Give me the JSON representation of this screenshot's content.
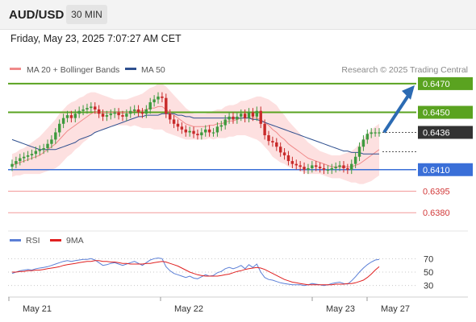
{
  "header": {
    "symbol": "AUD/USD",
    "timeframe": "30 MIN",
    "timestamp": "Friday, May 23, 2025 7:07:27 AM CET"
  },
  "legend": {
    "items": [
      {
        "label": "MA 20 + Bollinger Bands",
        "color": "#f08a8a"
      },
      {
        "label": "MA 50",
        "color": "#2e4f8f"
      }
    ],
    "credit": "Research © 2025 Trading Central"
  },
  "rsi_legend": {
    "items": [
      {
        "label": "RSI",
        "color": "#5b7fd6"
      },
      {
        "label": "9MA",
        "color": "#e02020"
      }
    ]
  },
  "colors": {
    "resistance": "#5aa320",
    "support": "#3a6fd8",
    "target_support": "#f29a9a",
    "last_price": "#333333",
    "arrow": "#2c6bb3",
    "bullish": "#3e9a3e",
    "bearish": "#c82a2a",
    "bands_fill": "#fde0e0"
  },
  "chart_data": [
    {
      "type": "candlestick",
      "title": "AUD/USD",
      "yrange": [
        0.637,
        0.6475
      ],
      "key_levels": [
        {
          "value": 0.647,
          "label": "0.6470",
          "kind": "resistance"
        },
        {
          "value": 0.645,
          "label": "0.6450",
          "kind": "resistance"
        },
        {
          "value": 0.6436,
          "label": "0.6436",
          "kind": "last_price"
        },
        {
          "value": 0.641,
          "label": "0.6410",
          "kind": "support"
        },
        {
          "value": 0.6395,
          "label": "0.6395",
          "kind": "target"
        },
        {
          "value": 0.638,
          "label": "0.6380",
          "kind": "target"
        }
      ],
      "x_ticks": [
        "May 21",
        "May 22",
        "May 23",
        "May 27"
      ],
      "forecast_arrow": {
        "from": 0.6436,
        "to": 0.647
      },
      "close": [
        0.6414,
        0.6416,
        0.6418,
        0.6419,
        0.642,
        0.6421,
        0.6423,
        0.6424,
        0.6425,
        0.6428,
        0.6431,
        0.6436,
        0.6442,
        0.6446,
        0.6448,
        0.6446,
        0.6449,
        0.6451,
        0.6452,
        0.6453,
        0.6454,
        0.6452,
        0.6449,
        0.6447,
        0.6448,
        0.6449,
        0.645,
        0.6448,
        0.6447,
        0.6449,
        0.6451,
        0.6452,
        0.645,
        0.6449,
        0.6452,
        0.6457,
        0.6459,
        0.6461,
        0.646,
        0.6449,
        0.6445,
        0.6442,
        0.644,
        0.6438,
        0.6436,
        0.6437,
        0.6435,
        0.6434,
        0.6436,
        0.6438,
        0.6436,
        0.6436,
        0.644,
        0.6441,
        0.6445,
        0.6447,
        0.6445,
        0.6447,
        0.6449,
        0.6446,
        0.645,
        0.6447,
        0.6451,
        0.6442,
        0.6434,
        0.643,
        0.6429,
        0.6426,
        0.6422,
        0.642,
        0.6416,
        0.6414,
        0.6413,
        0.6412,
        0.641,
        0.6411,
        0.6413,
        0.6412,
        0.6411,
        0.641,
        0.641,
        0.6411,
        0.6412,
        0.6413,
        0.6411,
        0.641,
        0.6414,
        0.6419,
        0.6426,
        0.6431,
        0.6435,
        0.6436,
        0.6436,
        0.6436
      ],
      "ma20": [
        0.6413,
        0.6414,
        0.6415,
        0.6416,
        0.6417,
        0.6418,
        0.6419,
        0.642,
        0.6422,
        0.6424,
        0.6426,
        0.6428,
        0.6431,
        0.6434,
        0.6437,
        0.6439,
        0.6441,
        0.6443,
        0.6445,
        0.6447,
        0.6449,
        0.645,
        0.645,
        0.645,
        0.645,
        0.645,
        0.645,
        0.645,
        0.645,
        0.645,
        0.645,
        0.6451,
        0.6451,
        0.6451,
        0.6452,
        0.6453,
        0.6453,
        0.6454,
        0.6454,
        0.6452,
        0.645,
        0.6448,
        0.6446,
        0.6444,
        0.6442,
        0.6441,
        0.644,
        0.644,
        0.644,
        0.644,
        0.6441,
        0.6441,
        0.6442,
        0.6442,
        0.6443,
        0.6444,
        0.6444,
        0.6445,
        0.6446,
        0.6446,
        0.6446,
        0.6446,
        0.6446,
        0.6445,
        0.6443,
        0.6441,
        0.6438,
        0.6436,
        0.6433,
        0.6431,
        0.6428,
        0.6426,
        0.6424,
        0.6422,
        0.642,
        0.6418,
        0.6417,
        0.6416,
        0.6415,
        0.6414,
        0.6413,
        0.6412,
        0.6412,
        0.6412,
        0.6412,
        0.6412,
        0.6412,
        0.6413,
        0.6414,
        0.6416,
        0.6418,
        0.642,
        0.6422,
        0.6424
      ],
      "ma50": [
        0.6431,
        0.643,
        0.6429,
        0.6428,
        0.6427,
        0.6426,
        0.6425,
        0.6424,
        0.6424,
        0.6424,
        0.6424,
        0.6424,
        0.6425,
        0.6426,
        0.6427,
        0.6428,
        0.6429,
        0.6431,
        0.6432,
        0.6433,
        0.6434,
        0.6436,
        0.6437,
        0.6438,
        0.6439,
        0.644,
        0.6441,
        0.6442,
        0.6443,
        0.6444,
        0.6445,
        0.6446,
        0.6447,
        0.6447,
        0.6448,
        0.6448,
        0.6448,
        0.6448,
        0.6449,
        0.6449,
        0.6449,
        0.6449,
        0.6448,
        0.6448,
        0.6447,
        0.6447,
        0.6446,
        0.6446,
        0.6446,
        0.6446,
        0.6446,
        0.6446,
        0.6446,
        0.6446,
        0.6446,
        0.6446,
        0.6446,
        0.6446,
        0.6446,
        0.6446,
        0.6446,
        0.6445,
        0.6445,
        0.6444,
        0.6443,
        0.6442,
        0.6441,
        0.644,
        0.6439,
        0.6438,
        0.6437,
        0.6436,
        0.6435,
        0.6434,
        0.6433,
        0.6432,
        0.6431,
        0.643,
        0.6429,
        0.6428,
        0.6427,
        0.6426,
        0.6425,
        0.6424,
        0.6423,
        0.6423,
        0.6422,
        0.6422,
        0.6422,
        0.6421,
        0.6421,
        0.6421,
        0.6421,
        0.6421
      ],
      "band_width": [
        0.0008,
        0.0008,
        0.0009,
        0.0009,
        0.001,
        0.0011,
        0.0012,
        0.0013,
        0.0014,
        0.0015,
        0.0016,
        0.0017,
        0.0018,
        0.0018,
        0.0018,
        0.0018,
        0.0017,
        0.0017,
        0.0016,
        0.0016,
        0.0015,
        0.0014,
        0.0013,
        0.0012,
        0.0011,
        0.001,
        0.0009,
        0.0009,
        0.0009,
        0.0009,
        0.001,
        0.001,
        0.0011,
        0.0012,
        0.0013,
        0.0014,
        0.0015,
        0.0016,
        0.0016,
        0.0016,
        0.0015,
        0.0014,
        0.0013,
        0.0012,
        0.0011,
        0.001,
        0.0009,
        0.0009,
        0.0009,
        0.0009,
        0.0009,
        0.001,
        0.001,
        0.001,
        0.0011,
        0.0011,
        0.0011,
        0.0011,
        0.0012,
        0.0012,
        0.0013,
        0.0014,
        0.0015,
        0.0016,
        0.0017,
        0.0018,
        0.0019,
        0.0019,
        0.0018,
        0.0017,
        0.0016,
        0.0015,
        0.0014,
        0.0013,
        0.0012,
        0.0011,
        0.001,
        0.0009,
        0.0008,
        0.0008,
        0.0008,
        0.0008,
        0.0008,
        0.0008,
        0.0009,
        0.001,
        0.0011,
        0.0012,
        0.0014,
        0.0016,
        0.0017,
        0.0018,
        0.0018,
        0.0018
      ]
    },
    {
      "type": "line",
      "title": "RSI",
      "yrange": [
        20,
        80
      ],
      "y_ticks": [
        70,
        50,
        30
      ],
      "series": [
        {
          "name": "RSI",
          "values": [
            48,
            50,
            52,
            53,
            54,
            53,
            55,
            56,
            57,
            58,
            60,
            62,
            64,
            66,
            67,
            66,
            67,
            68,
            69,
            69,
            70,
            68,
            64,
            60,
            61,
            63,
            64,
            62,
            60,
            62,
            64,
            66,
            63,
            60,
            64,
            68,
            70,
            71,
            70,
            58,
            52,
            48,
            46,
            44,
            42,
            44,
            41,
            40,
            43,
            46,
            44,
            45,
            49,
            51,
            55,
            57,
            55,
            57,
            60,
            55,
            61,
            57,
            62,
            50,
            42,
            39,
            38,
            36,
            34,
            33,
            32,
            31,
            31,
            31,
            30,
            31,
            33,
            32,
            31,
            30,
            31,
            33,
            34,
            35,
            33,
            32,
            37,
            43,
            50,
            56,
            61,
            65,
            68,
            69
          ]
        },
        {
          "name": "9MA",
          "values": [
            50,
            50,
            51,
            51,
            52,
            52,
            53,
            53,
            54,
            55,
            56,
            57,
            58,
            60,
            61,
            62,
            63,
            64,
            65,
            66,
            66,
            67,
            67,
            66,
            66,
            65,
            65,
            64,
            63,
            63,
            62,
            62,
            62,
            62,
            63,
            63,
            64,
            65,
            66,
            65,
            63,
            61,
            59,
            56,
            53,
            50,
            48,
            46,
            45,
            44,
            44,
            44,
            44,
            45,
            46,
            47,
            49,
            51,
            52,
            54,
            55,
            56,
            57,
            56,
            54,
            51,
            48,
            45,
            42,
            39,
            37,
            35,
            34,
            33,
            32,
            31,
            31,
            31,
            31,
            31,
            31,
            31,
            32,
            32,
            32,
            33,
            33,
            34,
            36,
            38,
            42,
            47,
            53,
            58
          ]
        }
      ]
    }
  ]
}
